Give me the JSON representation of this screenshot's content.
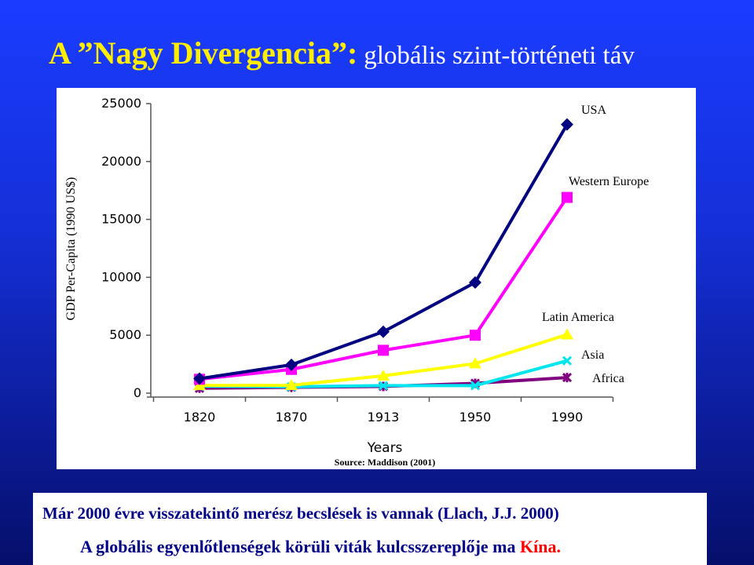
{
  "slide": {
    "title_main": "A ”Nagy Divergencia”:",
    "title_sub": "globális szint-történeti táv",
    "footer_line1": "Már 2000 évre visszatekintő merész becslések is vannak (Llach, J.J. 2000)",
    "footer_line2_prefix": "A globális egyenlőtlenségek körüli viták kulcsszereplője ma ",
    "footer_line2_highlight": "Kína."
  },
  "colors": {
    "title": "#ffee00",
    "footer_text": "#000088",
    "footer_highlight": "#ff0000"
  },
  "chart_data": {
    "type": "line",
    "title": "",
    "xlabel": "Years",
    "ylabel": "GDP Per-Capita (1990 US$)",
    "source": "Source: Maddison (2001)",
    "categories": [
      "1820",
      "1870",
      "1913",
      "1950",
      "1990"
    ],
    "ylim": [
      0,
      25000
    ],
    "yticks": [
      0,
      5000,
      10000,
      15000,
      20000,
      25000
    ],
    "grid": false,
    "legend": "labels at series end",
    "series": [
      {
        "name": "USA",
        "color": "#000080",
        "marker": "diamond",
        "values": [
          1250,
          2450,
          5300,
          9550,
          23200
        ]
      },
      {
        "name": "Western Europe",
        "color": "#ff00ff",
        "marker": "square",
        "values": [
          1200,
          2050,
          3700,
          5000,
          16900
        ]
      },
      {
        "name": "Latin America",
        "color": "#ffff00",
        "marker": "triangle",
        "values": [
          670,
          680,
          1500,
          2550,
          5050
        ]
      },
      {
        "name": "Asia",
        "color": "#00e5ee",
        "marker": "x",
        "values": [
          600,
          550,
          650,
          650,
          2800
        ]
      },
      {
        "name": "Africa",
        "color": "#800080",
        "marker": "star",
        "values": [
          420,
          500,
          580,
          850,
          1350
        ]
      }
    ]
  }
}
